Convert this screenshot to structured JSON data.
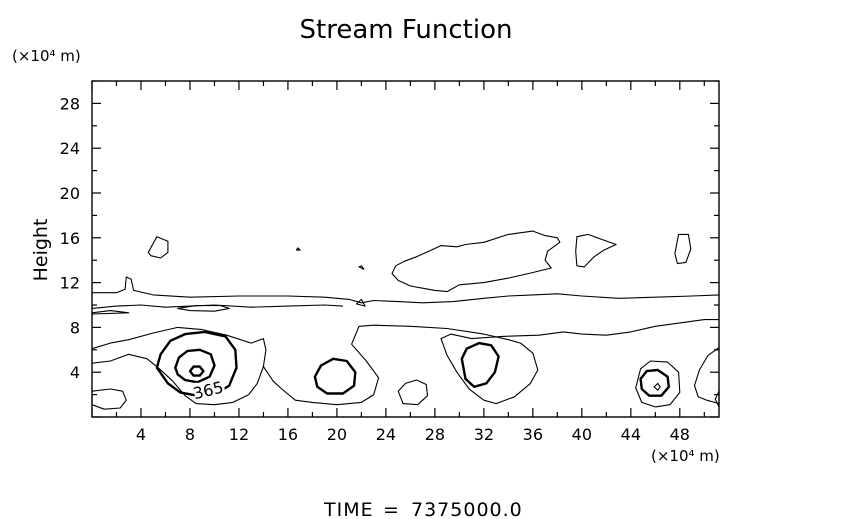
{
  "chart_data": {
    "type": "contour",
    "title": "Stream Function",
    "xlabel": "",
    "ylabel": "Height",
    "x_unit": "(×10⁴ m)",
    "y_unit": "(×10⁴ m)",
    "xlim": [
      0,
      51.2
    ],
    "ylim": [
      0,
      30
    ],
    "x_ticks": [
      4,
      8,
      12,
      16,
      20,
      24,
      28,
      32,
      36,
      40,
      44,
      48
    ],
    "y_ticks": [
      4,
      8,
      12,
      16,
      20,
      24,
      28
    ],
    "contour_labels": [
      {
        "text": "365",
        "x": 9.6,
        "y": 1.9
      }
    ],
    "contours": [
      {
        "weight": "thin",
        "closed": false,
        "points": [
          [
            0,
            11.1
          ],
          [
            2,
            11.1
          ],
          [
            2.7,
            11.4
          ],
          [
            2.8,
            12.5
          ],
          [
            3.2,
            12.3
          ],
          [
            3.4,
            11.3
          ],
          [
            5,
            10.9
          ],
          [
            8,
            10.7
          ],
          [
            12,
            10.8
          ],
          [
            16,
            10.8
          ],
          [
            19,
            10.7
          ],
          [
            21,
            10.5
          ],
          [
            22,
            10.2
          ],
          [
            23,
            10.4
          ],
          [
            25,
            10.3
          ],
          [
            27,
            10.2
          ],
          [
            29.5,
            10.3
          ],
          [
            32,
            10.6
          ],
          [
            34,
            10.8
          ],
          [
            36,
            10.9
          ],
          [
            38,
            11.0
          ],
          [
            40,
            10.8
          ],
          [
            43,
            10.6
          ],
          [
            46,
            10.7
          ],
          [
            49,
            10.8
          ],
          [
            51.2,
            10.9
          ]
        ]
      },
      {
        "weight": "thin",
        "closed": false,
        "points": [
          [
            0,
            9.7
          ],
          [
            2,
            9.9
          ],
          [
            4,
            10.0
          ],
          [
            6,
            9.8
          ],
          [
            8,
            9.9
          ],
          [
            10,
            10.0
          ],
          [
            13,
            9.8
          ],
          [
            16,
            9.9
          ],
          [
            19,
            10.0
          ],
          [
            20.5,
            9.9
          ]
        ]
      },
      {
        "weight": "thin",
        "closed": false,
        "points": [
          [
            0,
            9.3
          ],
          [
            1.5,
            9.5
          ],
          [
            3,
            9.3
          ],
          [
            0,
            9.2
          ]
        ]
      },
      {
        "weight": "thin",
        "closed": true,
        "points": [
          [
            7,
            9.7
          ],
          [
            8.5,
            9.95
          ],
          [
            10.5,
            9.95
          ],
          [
            11.2,
            9.7
          ],
          [
            10,
            9.45
          ],
          [
            8,
            9.5
          ]
        ]
      },
      {
        "weight": "thin",
        "closed": true,
        "points": [
          [
            4.6,
            14.7
          ],
          [
            5.3,
            16.1
          ],
          [
            6.2,
            15.7
          ],
          [
            6.2,
            14.7
          ],
          [
            5.6,
            14.2
          ],
          [
            4.8,
            14.4
          ]
        ]
      },
      {
        "weight": "thin",
        "closed": true,
        "points": [
          [
            21.6,
            10.1
          ],
          [
            22.3,
            9.9
          ],
          [
            22.0,
            10.5
          ]
        ]
      },
      {
        "weight": "thin",
        "closed": true,
        "points": [
          [
            16.7,
            14.9
          ],
          [
            17.0,
            14.9
          ],
          [
            16.8,
            15.1
          ]
        ]
      },
      {
        "weight": "thin",
        "closed": true,
        "points": [
          [
            21.8,
            13.4
          ],
          [
            22.2,
            13.2
          ],
          [
            22.0,
            13.5
          ]
        ]
      },
      {
        "weight": "thin",
        "closed": true,
        "points": [
          [
            24.8,
            13.5
          ],
          [
            25.5,
            13.9
          ],
          [
            26.5,
            14.3
          ],
          [
            27.5,
            14.8
          ],
          [
            28.5,
            15.3
          ],
          [
            29.8,
            15.2
          ],
          [
            30.5,
            15.4
          ],
          [
            32,
            15.6
          ],
          [
            34,
            16.3
          ],
          [
            36,
            16.6
          ],
          [
            37,
            16.2
          ],
          [
            38,
            16.0
          ],
          [
            38.2,
            15.6
          ],
          [
            37.2,
            14.8
          ],
          [
            37.0,
            14.0
          ],
          [
            37.5,
            13.3
          ],
          [
            36,
            12.9
          ],
          [
            34,
            12.4
          ],
          [
            32,
            12.0
          ],
          [
            30,
            11.8
          ],
          [
            29,
            11.2
          ],
          [
            28,
            11.3
          ],
          [
            27,
            11.5
          ],
          [
            26,
            11.7
          ],
          [
            25,
            12.2
          ],
          [
            24.5,
            12.8
          ]
        ]
      },
      {
        "weight": "thin",
        "closed": true,
        "points": [
          [
            39.6,
            16.1
          ],
          [
            40.5,
            16.3
          ],
          [
            41.5,
            15.9
          ],
          [
            42.8,
            15.4
          ],
          [
            41.8,
            14.9
          ],
          [
            41,
            14.3
          ],
          [
            40.2,
            13.4
          ],
          [
            39.6,
            13.5
          ],
          [
            39.5,
            14.8
          ]
        ]
      },
      {
        "weight": "thin",
        "closed": true,
        "points": [
          [
            47.6,
            14.6
          ],
          [
            47.9,
            16.3
          ],
          [
            48.7,
            16.3
          ],
          [
            48.9,
            15.0
          ],
          [
            48.5,
            13.8
          ],
          [
            47.8,
            13.7
          ]
        ]
      },
      {
        "weight": "thin",
        "closed": false,
        "points": [
          [
            0,
            6.1
          ],
          [
            1.5,
            6.6
          ],
          [
            3,
            6.9
          ],
          [
            5,
            7.5
          ],
          [
            7,
            8.0
          ],
          [
            9,
            7.8
          ],
          [
            11,
            7.3
          ],
          [
            13,
            6.6
          ],
          [
            14,
            7.0
          ],
          [
            14.2,
            6.0
          ],
          [
            14.0,
            4.5
          ],
          [
            14.8,
            3.2
          ],
          [
            15.5,
            2.5
          ],
          [
            16.6,
            1.5
          ],
          [
            18,
            1.3
          ],
          [
            20,
            1.1
          ],
          [
            22,
            1.3
          ],
          [
            23.0,
            2.0
          ],
          [
            23.4,
            3.5
          ],
          [
            22.4,
            5.0
          ],
          [
            21.2,
            6.5
          ],
          [
            21.8,
            8.1
          ],
          [
            23,
            8.2
          ],
          [
            26,
            8.1
          ],
          [
            29,
            7.9
          ],
          [
            32,
            7.4
          ],
          [
            34,
            6.9
          ],
          [
            35.0,
            6.6
          ],
          [
            36.0,
            5.7
          ],
          [
            36.4,
            4.2
          ],
          [
            35.8,
            3.0
          ],
          [
            34.5,
            1.8
          ],
          [
            33.0,
            1.2
          ],
          [
            32.0,
            1.5
          ],
          [
            30.8,
            2.5
          ],
          [
            29.8,
            4.0
          ],
          [
            29.0,
            5.5
          ],
          [
            28.5,
            7.0
          ],
          [
            29.3,
            7.4
          ],
          [
            31,
            7.0
          ],
          [
            33.5,
            7.2
          ],
          [
            36.5,
            7.3
          ],
          [
            38.5,
            7.6
          ],
          [
            40,
            7.4
          ],
          [
            42,
            7.3
          ],
          [
            44,
            7.6
          ],
          [
            46,
            8.1
          ],
          [
            48,
            8.4
          ],
          [
            50,
            8.7
          ],
          [
            51.2,
            8.7
          ]
        ]
      },
      {
        "weight": "thin",
        "closed": false,
        "points": [
          [
            0,
            4.8
          ],
          [
            1.5,
            5.0
          ],
          [
            2.5,
            5.4
          ],
          [
            3,
            5.6
          ],
          [
            4.5,
            5.2
          ],
          [
            5.5,
            4.3
          ],
          [
            6.6,
            3.2
          ],
          [
            7.6,
            1.9
          ],
          [
            8.5,
            1.2
          ],
          [
            10.0,
            1.1
          ],
          [
            11.5,
            1.3
          ],
          [
            12.8,
            2.0
          ],
          [
            13.5,
            3.0
          ],
          [
            14.0,
            4.5
          ]
        ]
      },
      {
        "weight": "thin",
        "closed": true,
        "points": [
          [
            0,
            1.1
          ],
          [
            1,
            0.7
          ],
          [
            2.3,
            0.8
          ],
          [
            2.8,
            1.5
          ],
          [
            2.5,
            2.3
          ],
          [
            1.5,
            2.5
          ],
          [
            0,
            2.3
          ]
        ]
      },
      {
        "weight": "thin",
        "closed": true,
        "points": [
          [
            25.0,
            2.3
          ],
          [
            25.6,
            3.0
          ],
          [
            26.5,
            3.3
          ],
          [
            27.3,
            2.9
          ],
          [
            27.4,
            1.9
          ],
          [
            26.6,
            1.1
          ],
          [
            25.4,
            1.2
          ]
        ]
      },
      {
        "weight": "thin",
        "closed": true,
        "points": [
          [
            44.4,
            2.6
          ],
          [
            44.8,
            4.3
          ],
          [
            45.6,
            5.0
          ],
          [
            47.0,
            4.9
          ],
          [
            47.9,
            4.0
          ],
          [
            48.0,
            2.2
          ],
          [
            47.2,
            1.1
          ],
          [
            46.0,
            0.9
          ],
          [
            44.9,
            1.3
          ]
        ]
      },
      {
        "weight": "thin",
        "closed": false,
        "points": [
          [
            51.2,
            6.2
          ],
          [
            50.3,
            5.5
          ],
          [
            49.6,
            4.2
          ],
          [
            49.2,
            2.8
          ],
          [
            49.5,
            1.8
          ],
          [
            50.2,
            1.5
          ],
          [
            51.2,
            1.2
          ]
        ]
      },
      {
        "weight": "thin",
        "closed": true,
        "points": [
          [
            51.2,
            2.3
          ],
          [
            50.9,
            1.6
          ],
          [
            51.2,
            0.9
          ]
        ]
      },
      {
        "weight": "thin",
        "closed": true,
        "points": [
          [
            45.9,
            2.7
          ],
          [
            46.2,
            3.0
          ],
          [
            46.4,
            2.7
          ],
          [
            46.2,
            2.4
          ]
        ]
      },
      {
        "weight": "thick",
        "closed": true,
        "points": [
          [
            5.3,
            4.4
          ],
          [
            5.6,
            5.6
          ],
          [
            6.4,
            6.8
          ],
          [
            7.6,
            7.4
          ],
          [
            9.2,
            7.6
          ],
          [
            10.9,
            7.2
          ],
          [
            11.7,
            6.0
          ],
          [
            11.8,
            4.4
          ],
          [
            11.2,
            2.8
          ],
          [
            10.0,
            2.0
          ],
          [
            8.6,
            1.9
          ],
          [
            7.2,
            2.2
          ],
          [
            6.2,
            3.0
          ]
        ]
      },
      {
        "weight": "thick",
        "closed": true,
        "points": [
          [
            6.8,
            4.4
          ],
          [
            7.1,
            5.3
          ],
          [
            7.8,
            5.9
          ],
          [
            8.8,
            6.0
          ],
          [
            9.7,
            5.6
          ],
          [
            10.0,
            4.6
          ],
          [
            9.6,
            3.6
          ],
          [
            8.6,
            3.1
          ],
          [
            7.6,
            3.3
          ],
          [
            7.0,
            3.8
          ]
        ]
      },
      {
        "weight": "thick",
        "closed": true,
        "points": [
          [
            8.0,
            4.1
          ],
          [
            8.3,
            4.5
          ],
          [
            8.8,
            4.5
          ],
          [
            9.1,
            4.1
          ],
          [
            8.8,
            3.7
          ],
          [
            8.3,
            3.7
          ]
        ]
      },
      {
        "weight": "thick",
        "closed": true,
        "points": [
          [
            18.2,
            3.6
          ],
          [
            18.7,
            4.6
          ],
          [
            19.7,
            5.2
          ],
          [
            20.8,
            5.0
          ],
          [
            21.5,
            4.0
          ],
          [
            21.4,
            2.8
          ],
          [
            20.5,
            2.1
          ],
          [
            19.2,
            2.1
          ],
          [
            18.4,
            2.7
          ]
        ]
      },
      {
        "weight": "thick",
        "closed": true,
        "points": [
          [
            30.2,
            5.2
          ],
          [
            30.6,
            6.1
          ],
          [
            31.6,
            6.6
          ],
          [
            32.6,
            6.4
          ],
          [
            33.2,
            5.4
          ],
          [
            32.9,
            4.0
          ],
          [
            32.2,
            3.0
          ],
          [
            31.2,
            2.7
          ],
          [
            30.5,
            3.4
          ]
        ]
      },
      {
        "weight": "thick",
        "closed": true,
        "points": [
          [
            44.8,
            3.4
          ],
          [
            45.3,
            4.1
          ],
          [
            46.2,
            4.2
          ],
          [
            47.0,
            3.6
          ],
          [
            47.1,
            2.7
          ],
          [
            46.5,
            1.9
          ],
          [
            45.5,
            1.9
          ],
          [
            44.9,
            2.5
          ]
        ]
      }
    ]
  },
  "footer": {
    "time_label": "TIME",
    "equals": "=",
    "time_value": "7375000.0"
  }
}
